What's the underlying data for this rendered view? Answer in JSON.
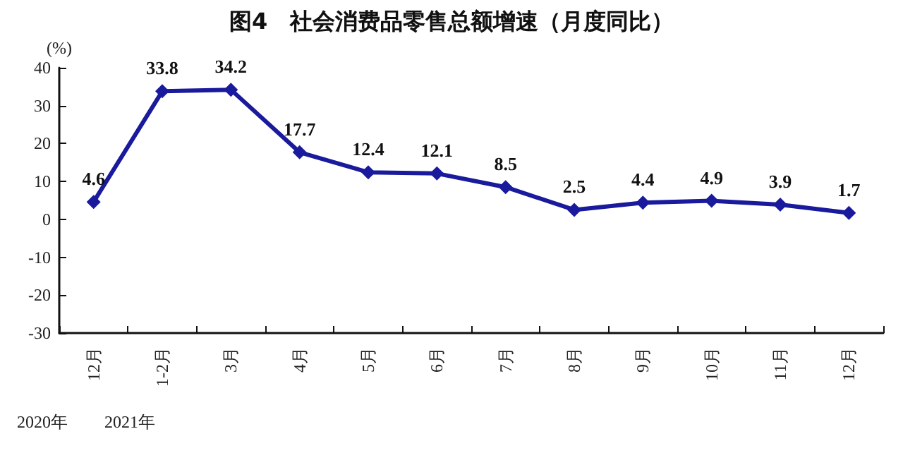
{
  "chart_data": {
    "type": "line",
    "title": "图4　社会消费品零售总额增速（月度同比）",
    "ylabel": "(%)",
    "categories": [
      "12月",
      "1-2月",
      "3月",
      "4月",
      "5月",
      "6月",
      "7月",
      "8月",
      "9月",
      "10月",
      "11月",
      "12月"
    ],
    "series": [
      {
        "color": "#1a1a9c",
        "values": [
          4.6,
          33.8,
          34.2,
          17.7,
          12.4,
          12.1,
          8.5,
          2.5,
          4.4,
          4.9,
          3.9,
          1.7
        ]
      }
    ],
    "ylim": [
      -30,
      40
    ],
    "yticks": [
      -30,
      -20,
      -10,
      0,
      10,
      20,
      30,
      40
    ],
    "marker": "diamond",
    "line_style": "solid",
    "data_labels": true,
    "annotations": [
      "2020年",
      "2021年"
    ]
  }
}
